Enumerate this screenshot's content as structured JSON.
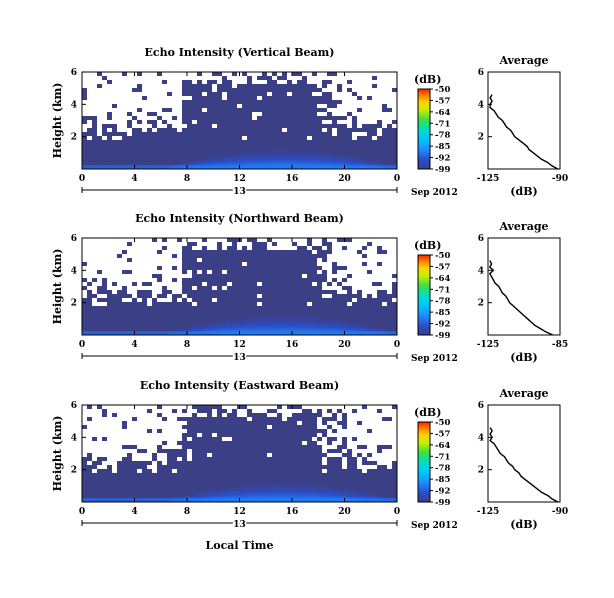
{
  "chart_data": [
    {
      "type": "heatmap",
      "title": "Echo Intensity (Vertical Beam)",
      "ylabel": "Height (km)",
      "xlabel": "",
      "x_ticks": [
        "0",
        "4",
        "8",
        "12",
        "16",
        "20",
        "0"
      ],
      "y_ticks": [
        "6",
        "4",
        "2"
      ],
      "xlim": [
        0,
        24
      ],
      "ylim": [
        0,
        6
      ],
      "date_day": "13",
      "date_month": "Sep 2012",
      "colorbar": {
        "unit": "(dB)",
        "ticks": [
          "-50",
          "-57",
          "-64",
          "-71",
          "-78",
          "-85",
          "-92",
          "-99"
        ],
        "range": [
          -99,
          -50
        ]
      },
      "average": {
        "title": "Average",
        "xlabel": "(dB)",
        "x_ticks": [
          "-125",
          "-90"
        ],
        "y_ticks": [
          "6",
          "4",
          "2"
        ],
        "xlim": [
          -125,
          -90
        ],
        "profile": {
          "height_km": [
            0.0,
            0.2,
            0.4,
            0.6,
            0.8,
            1.0,
            1.2,
            1.4,
            1.6,
            1.8,
            2.0,
            2.2,
            2.4,
            2.6,
            2.8,
            3.0,
            3.2,
            3.4,
            3.6,
            3.8,
            4.0,
            4.2,
            4.4,
            4.6
          ],
          "db": [
            -91,
            -94,
            -96,
            -99,
            -101,
            -103,
            -105,
            -106,
            -108,
            -110,
            -112,
            -113,
            -114,
            -116,
            -117,
            -118,
            -120,
            -121,
            -122,
            -124,
            -124,
            -123,
            -124,
            -123
          ]
        }
      }
    },
    {
      "type": "heatmap",
      "title": "Echo Intensity (Northward Beam)",
      "ylabel": "Height (km)",
      "xlabel": "",
      "x_ticks": [
        "0",
        "4",
        "8",
        "12",
        "16",
        "20",
        "0"
      ],
      "y_ticks": [
        "6",
        "4",
        "2"
      ],
      "xlim": [
        0,
        24
      ],
      "ylim": [
        0,
        6
      ],
      "date_day": "13",
      "date_month": "Sep 2012",
      "colorbar": {
        "unit": "(dB)",
        "ticks": [
          "-50",
          "-57",
          "-64",
          "-71",
          "-78",
          "-85",
          "-92",
          "-99"
        ],
        "range": [
          -99,
          -50
        ]
      },
      "average": {
        "title": "Average",
        "xlabel": "(dB)",
        "x_ticks": [
          "-125",
          "-85"
        ],
        "y_ticks": [
          "6",
          "4",
          "2"
        ],
        "xlim": [
          -125,
          -85
        ],
        "profile": {
          "height_km": [
            0.0,
            0.2,
            0.4,
            0.6,
            0.8,
            1.0,
            1.2,
            1.4,
            1.6,
            1.8,
            2.0,
            2.2,
            2.4,
            2.6,
            2.8,
            3.0,
            3.2,
            3.4,
            3.6,
            3.8,
            4.0,
            4.2,
            4.4,
            4.6
          ],
          "db": [
            -89,
            -93,
            -96,
            -99,
            -101,
            -103,
            -105,
            -107,
            -109,
            -111,
            -113,
            -114,
            -115,
            -117,
            -118,
            -119,
            -121,
            -122,
            -123,
            -124,
            -122,
            -124,
            -123,
            -124
          ]
        }
      }
    },
    {
      "type": "heatmap",
      "title": "Echo Intensity (Eastward Beam)",
      "ylabel": "Height (km)",
      "xlabel": "Local Time",
      "x_ticks": [
        "0",
        "4",
        "8",
        "12",
        "16",
        "20",
        "0"
      ],
      "y_ticks": [
        "6",
        "4",
        "2"
      ],
      "xlim": [
        0,
        24
      ],
      "ylim": [
        0,
        6
      ],
      "date_day": "13",
      "date_month": "Sep 2012",
      "colorbar": {
        "unit": "(dB)",
        "ticks": [
          "-50",
          "-57",
          "-64",
          "-71",
          "-78",
          "-85",
          "-92",
          "-99"
        ],
        "range": [
          -99,
          -50
        ]
      },
      "average": {
        "title": "Average",
        "xlabel": "(dB)",
        "x_ticks": [
          "-125",
          "-90"
        ],
        "y_ticks": [
          "6",
          "4",
          "2"
        ],
        "xlim": [
          -125,
          -90
        ],
        "profile": {
          "height_km": [
            0.0,
            0.2,
            0.4,
            0.6,
            0.8,
            1.0,
            1.2,
            1.4,
            1.6,
            1.8,
            2.0,
            2.2,
            2.4,
            2.6,
            2.8,
            3.0,
            3.2,
            3.4,
            3.6,
            3.8,
            4.0,
            4.2,
            4.4,
            4.6
          ],
          "db": [
            -91,
            -94,
            -96,
            -99,
            -101,
            -103,
            -105,
            -107,
            -109,
            -110,
            -112,
            -113,
            -115,
            -116,
            -117,
            -119,
            -120,
            -121,
            -122,
            -124,
            -123,
            -124,
            -123,
            -124
          ]
        }
      }
    }
  ],
  "colors": {
    "background_field": "#3b3f86",
    "colormap": [
      "#3b3f86",
      "#2a4fd0",
      "#1e90ff",
      "#00c8ff",
      "#00e0c0",
      "#40e040",
      "#c8f000",
      "#ffd000",
      "#ff8000",
      "#ff2000"
    ]
  }
}
